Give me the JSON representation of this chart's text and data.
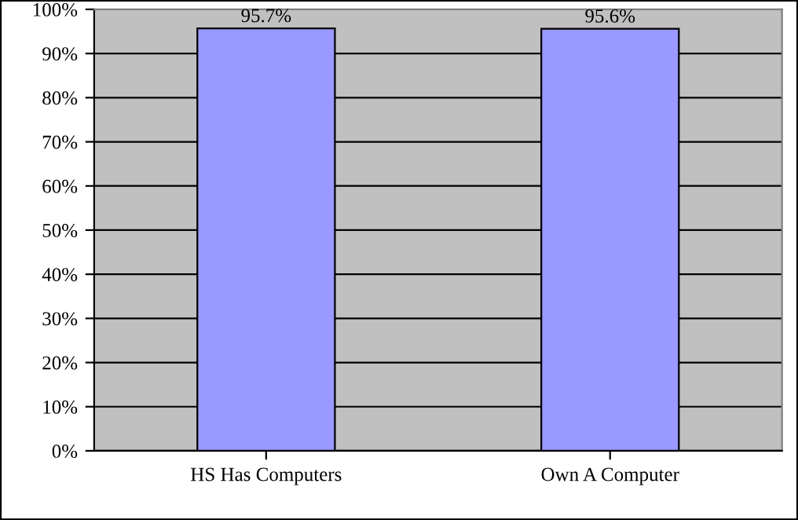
{
  "chart_data": {
    "type": "bar",
    "categories": [
      "HS Has Computers",
      "Own A Computer"
    ],
    "series": [
      {
        "color": "#9999ff",
        "values": [
          95.7,
          95.6
        ],
        "value_labels": [
          "95.7%",
          "95.6%"
        ]
      }
    ],
    "ylim": [
      0,
      100
    ],
    "yticks": [
      {
        "value": 0,
        "label": "0%"
      },
      {
        "value": 10,
        "label": "10%"
      },
      {
        "value": 20,
        "label": "20%"
      },
      {
        "value": 30,
        "label": "30%"
      },
      {
        "value": 40,
        "label": "40%"
      },
      {
        "value": 50,
        "label": "50%"
      },
      {
        "value": 60,
        "label": "60%"
      },
      {
        "value": 70,
        "label": "70%"
      },
      {
        "value": 80,
        "label": "80%"
      },
      {
        "value": 90,
        "label": "90%"
      },
      {
        "value": 100,
        "label": "100%"
      }
    ],
    "grid": "y"
  }
}
